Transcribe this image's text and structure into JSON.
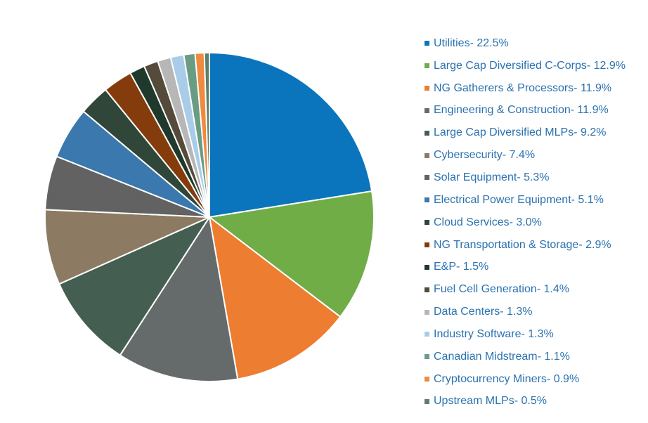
{
  "chart_data": {
    "type": "pie",
    "title": "",
    "legend_position": "right",
    "start_angle_deg": 0,
    "direction": "clockwise",
    "slices": [
      {
        "label": "Utilities- 22.5%",
        "value": 22.5,
        "color": "#0a75bc"
      },
      {
        "label": "Large Cap Diversified C-Corps- 12.9%",
        "value": 12.9,
        "color": "#70ad47"
      },
      {
        "label": "NG Gatherers & Processors- 11.9%",
        "value": 11.9,
        "color": "#ed7d31"
      },
      {
        "label": "Engineering & Construction- 11.9%",
        "value": 11.9,
        "color": "#656a6b"
      },
      {
        "label": "Large Cap Diversified MLPs- 9.2%",
        "value": 9.2,
        "color": "#445f52"
      },
      {
        "label": "Cybersecurity- 7.4%",
        "value": 7.4,
        "color": "#8c7b62"
      },
      {
        "label": "Solar Equipment- 5.3%",
        "value": 5.3,
        "color": "#626262"
      },
      {
        "label": "Electrical Power Equipment- 5.1%",
        "value": 5.1,
        "color": "#3a78ae"
      },
      {
        "label": "Cloud Services- 3.0%",
        "value": 3.0,
        "color": "#2f4639"
      },
      {
        "label": "NG Transportation & Storage- 2.9%",
        "value": 2.9,
        "color": "#843c0c"
      },
      {
        "label": "E&P- 1.5%",
        "value": 1.5,
        "color": "#1f3a2c"
      },
      {
        "label": "Fuel Cell Generation- 1.4%",
        "value": 1.4,
        "color": "#554b3b"
      },
      {
        "label": "Data Centers- 1.3%",
        "value": 1.3,
        "color": "#b7b7b7"
      },
      {
        "label": "Industry Software- 1.3%",
        "value": 1.3,
        "color": "#a9cce8"
      },
      {
        "label": "Canadian Midstream- 1.1%",
        "value": 1.1,
        "color": "#6a9c84"
      },
      {
        "label": "Cryptocurrency Miners- 0.9%",
        "value": 0.9,
        "color": "#ef8a3f"
      },
      {
        "label": "Upstream MLPs- 0.5%",
        "value": 0.5,
        "color": "#5d7d6f"
      }
    ]
  }
}
